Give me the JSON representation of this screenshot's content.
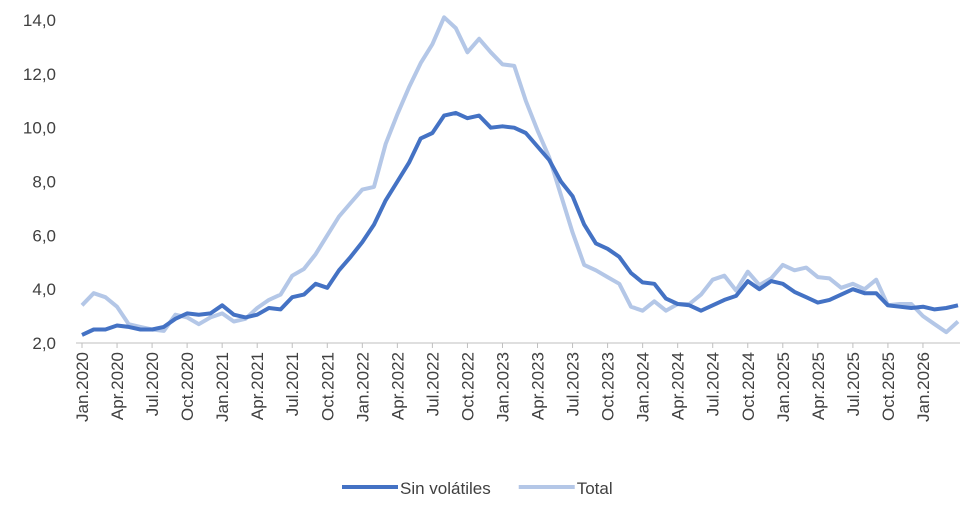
{
  "chart_data": {
    "type": "line",
    "categories": [
      "Jan.2020",
      null,
      null,
      "Apr.2020",
      null,
      null,
      "Jul.2020",
      null,
      null,
      "Oct.2020",
      null,
      null,
      "Jan.2021",
      null,
      null,
      "Apr.2021",
      null,
      null,
      "Jul.2021",
      null,
      null,
      "Oct.2021",
      null,
      null,
      "Jan.2022",
      null,
      null,
      "Apr.2022",
      null,
      null,
      "Jul.2022",
      null,
      null,
      "Oct.2022",
      null,
      null,
      "Jan.2023",
      null,
      null,
      "Apr.2023",
      null,
      null,
      "Jul.2023",
      null,
      null,
      "Oct.2023",
      null,
      null,
      "Jan.2024",
      null,
      null,
      "Apr.2024",
      null,
      null,
      "Jul.2024",
      null,
      null,
      "Oct.2024",
      null,
      null,
      "Jan.2025",
      null,
      null,
      "Apr.2025",
      null,
      null,
      "Jul.2025",
      null,
      null,
      "Oct.2025",
      null,
      null,
      "Jan.2026",
      null,
      null,
      null
    ],
    "series": [
      {
        "name": "Sin volátiles",
        "color": "#4472c4",
        "values": [
          2.3,
          2.5,
          2.5,
          2.65,
          2.6,
          2.5,
          2.5,
          2.6,
          2.9,
          3.1,
          3.05,
          3.1,
          3.4,
          3.05,
          2.95,
          3.05,
          3.3,
          3.25,
          3.7,
          3.8,
          4.2,
          4.05,
          4.7,
          5.2,
          5.75,
          6.4,
          7.3,
          8.0,
          8.7,
          9.6,
          9.8,
          10.45,
          10.55,
          10.35,
          10.45,
          10.0,
          10.05,
          10.0,
          9.8,
          9.3,
          8.8,
          8.0,
          7.45,
          6.4,
          5.7,
          5.5,
          5.2,
          4.6,
          4.25,
          4.2,
          3.65,
          3.45,
          3.4,
          3.2,
          3.4,
          3.6,
          3.75,
          4.3,
          4.0,
          4.3,
          4.2,
          3.9,
          3.7,
          3.5,
          3.6,
          3.8,
          4.0,
          3.85,
          3.85,
          3.4,
          3.35,
          3.3,
          3.35,
          3.25,
          3.3,
          3.4
        ]
      },
      {
        "name": "Total",
        "color": "#b4c7e7",
        "values": [
          3.4,
          3.85,
          3.7,
          3.35,
          2.7,
          2.6,
          2.5,
          2.45,
          3.05,
          2.95,
          2.7,
          2.95,
          3.1,
          2.8,
          2.9,
          3.3,
          3.6,
          3.8,
          4.5,
          4.75,
          5.3,
          6.0,
          6.7,
          7.2,
          7.7,
          7.8,
          9.4,
          10.5,
          11.5,
          12.4,
          13.1,
          14.1,
          13.7,
          12.8,
          13.3,
          12.8,
          12.35,
          12.3,
          11.0,
          9.9,
          8.9,
          7.5,
          6.1,
          4.9,
          4.7,
          4.45,
          4.2,
          3.35,
          3.2,
          3.55,
          3.2,
          3.45,
          3.45,
          3.8,
          4.35,
          4.5,
          3.95,
          4.65,
          4.15,
          4.4,
          4.9,
          4.7,
          4.8,
          4.45,
          4.4,
          4.05,
          4.2,
          4.0,
          4.35,
          3.4,
          3.45,
          3.45,
          3.0,
          2.7,
          2.4,
          2.8
        ]
      }
    ],
    "ylim": [
      2.0,
      14.0
    ],
    "yticks": [
      {
        "value": 2,
        "label": "2,0"
      },
      {
        "value": 4,
        "label": "4,0"
      },
      {
        "value": 6,
        "label": "6,0"
      },
      {
        "value": 8,
        "label": "8,0"
      },
      {
        "value": 10,
        "label": "10,0"
      },
      {
        "value": 12,
        "label": "12,0"
      },
      {
        "value": 14,
        "label": "14,0"
      }
    ],
    "grid": false,
    "legend": "bottom"
  }
}
